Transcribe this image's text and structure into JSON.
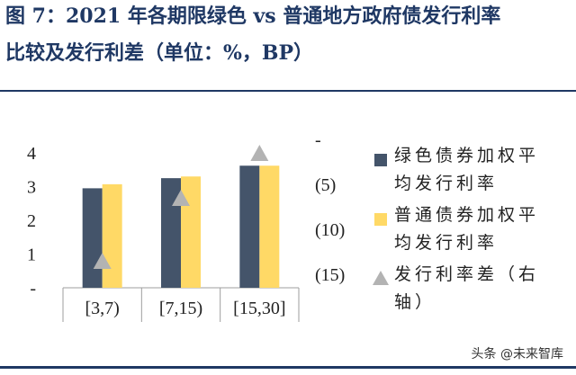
{
  "header": {
    "title_line1": "图 7：2021 年各期限绿色 vs 普通地方政府债发行利率",
    "title_line2": "比较及发行利差（单位：%，BP）"
  },
  "chart_data": {
    "type": "bar",
    "categories": [
      "[3,7)",
      "[7,15)",
      "[15,30]"
    ],
    "series": [
      {
        "name": "绿色债券加权平均发行利率",
        "type": "bar",
        "axis": "left",
        "color": "#44546a",
        "values": [
          2.95,
          3.25,
          3.62
        ]
      },
      {
        "name": "普通债券加权平均发行利率",
        "type": "bar",
        "axis": "left",
        "color": "#ffd966",
        "values": [
          3.07,
          3.3,
          3.62
        ]
      },
      {
        "name": "发行利率差（右轴）",
        "type": "scatter",
        "marker": "triangle",
        "axis": "right",
        "color": "#b3b3b3",
        "values": [
          -12.0,
          -5.0,
          0.0
        ]
      }
    ],
    "y_ticks": [
      "-",
      "1",
      "2",
      "3",
      "4"
    ],
    "ylim": [
      0,
      4
    ],
    "y2_ticks": [
      "-",
      "(5)",
      "(10)",
      "(15)"
    ],
    "y2lim": [
      -15,
      0
    ],
    "legend_position": "right",
    "grid": false
  },
  "legend": {
    "items": [
      {
        "line1": "绿色债券加权平",
        "line2": "均发行利率",
        "color": "#44546a",
        "marker": "square"
      },
      {
        "line1": "普通债券加权平",
        "line2": "均发行利率",
        "color": "#ffd966",
        "marker": "square"
      },
      {
        "line1": "发行利率差（右",
        "line2": "轴）",
        "color": "#b3b3b3",
        "marker": "triangle"
      }
    ]
  },
  "watermark": {
    "text": "头条 @未来智库"
  }
}
